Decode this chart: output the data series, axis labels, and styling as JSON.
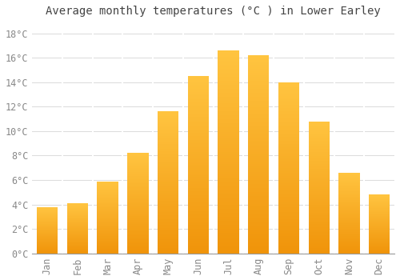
{
  "title": "Average monthly temperatures (°C ) in Lower Earley",
  "months": [
    "Jan",
    "Feb",
    "Mar",
    "Apr",
    "May",
    "Jun",
    "Jul",
    "Aug",
    "Sep",
    "Oct",
    "Nov",
    "Dec"
  ],
  "temperatures": [
    3.8,
    4.1,
    5.9,
    8.2,
    11.6,
    14.5,
    16.6,
    16.2,
    14.0,
    10.8,
    6.6,
    4.8
  ],
  "bar_color_top": "#FFB733",
  "bar_color_bottom": "#F0940A",
  "bar_edge_color": "#CCCCCC",
  "ylim": [
    0,
    19
  ],
  "yticks": [
    0,
    2,
    4,
    6,
    8,
    10,
    12,
    14,
    16,
    18
  ],
  "background_color": "#FFFFFF",
  "plot_bg_color": "#FFFFFF",
  "grid_color": "#DDDDDD",
  "title_fontsize": 10,
  "tick_fontsize": 8.5,
  "tick_color": "#888888",
  "title_color": "#444444",
  "bar_width": 0.7
}
